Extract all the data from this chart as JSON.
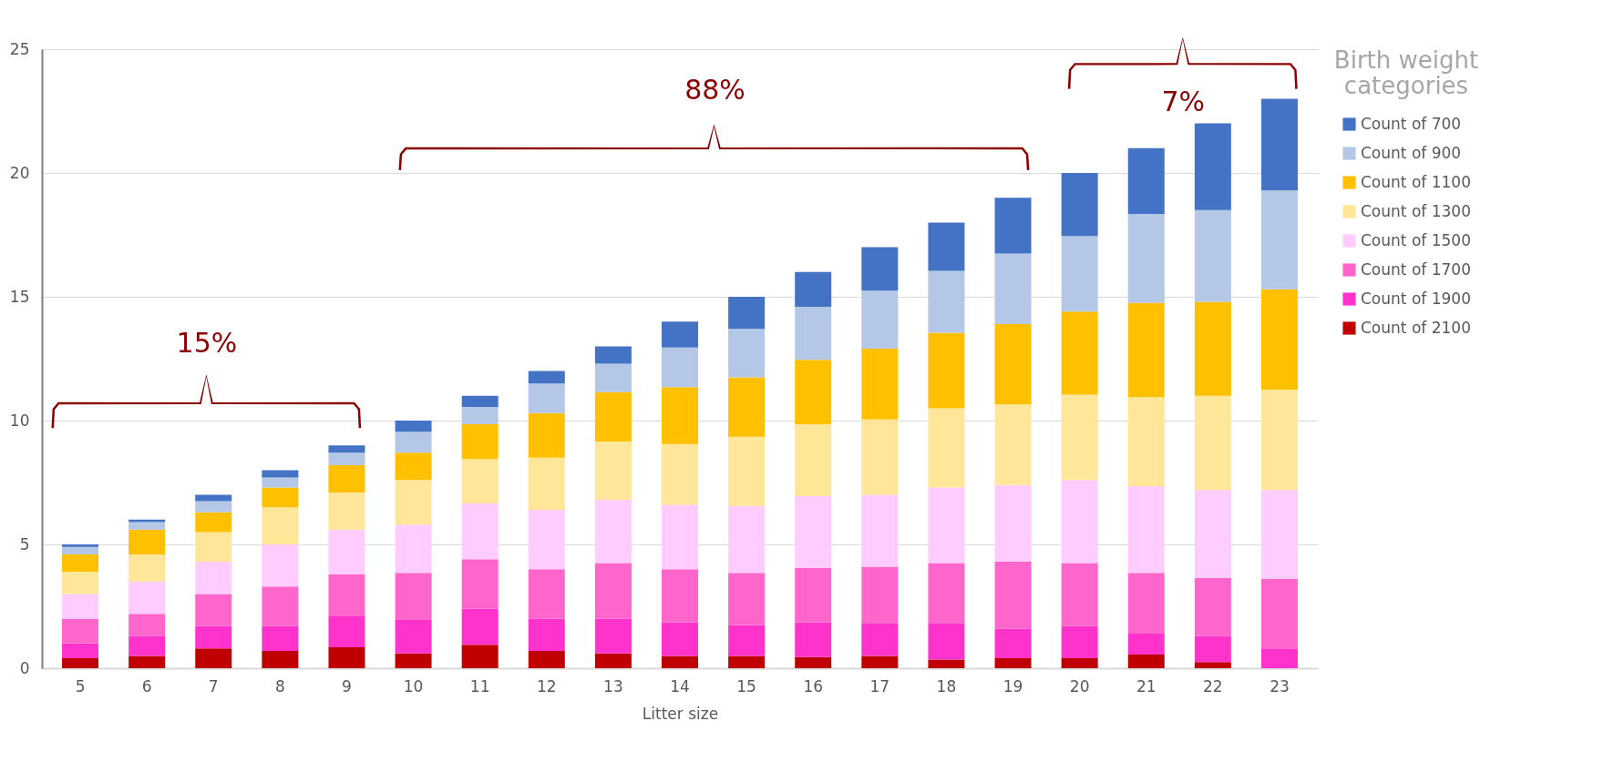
{
  "chart_data": {
    "type": "bar",
    "stacked": true,
    "xlabel": "Litter size",
    "legend_title": "Birth weight categories",
    "legend": "right",
    "grid": "y",
    "categories": [
      "5",
      "6",
      "7",
      "8",
      "9",
      "10",
      "11",
      "12",
      "13",
      "14",
      "15",
      "16",
      "17",
      "18",
      "19",
      "20",
      "21",
      "22",
      "23"
    ],
    "ylim": [
      0,
      25
    ],
    "yticks": [
      0,
      5,
      10,
      15,
      20,
      25
    ],
    "series": [
      {
        "name": "Count of 2100",
        "color": "#c00000",
        "values": [
          0.4,
          0.5,
          0.8,
          0.7,
          0.85,
          0.6,
          0.95,
          0.7,
          0.6,
          0.5,
          0.5,
          0.45,
          0.5,
          0.35,
          0.4,
          0.4,
          0.55,
          0.25,
          0
        ]
      },
      {
        "name": "Count of 1900",
        "color": "#ff33cc",
        "values": [
          0.6,
          0.8,
          0.9,
          1.0,
          1.25,
          1.35,
          1.45,
          1.3,
          1.4,
          1.35,
          1.25,
          1.4,
          1.3,
          1.45,
          1.2,
          1.3,
          0.85,
          1.05,
          0.8
        ]
      },
      {
        "name": "Count of 1700",
        "color": "#ff66cc",
        "values": [
          1.0,
          0.9,
          1.3,
          1.6,
          1.7,
          1.9,
          2.0,
          2.0,
          2.25,
          2.15,
          2.1,
          2.2,
          2.3,
          2.45,
          2.7,
          2.55,
          2.45,
          2.35,
          2.8
        ]
      },
      {
        "name": "Count of 1500",
        "color": "#ffccff",
        "values": [
          1.0,
          1.3,
          1.3,
          1.7,
          1.8,
          1.95,
          2.25,
          2.4,
          2.55,
          2.6,
          2.7,
          2.9,
          2.9,
          3.05,
          3.1,
          3.35,
          3.5,
          3.55,
          3.6
        ]
      },
      {
        "name": "Count of 1300",
        "color": "#ffe699",
        "values": [
          0.9,
          1.1,
          1.2,
          1.5,
          1.5,
          1.8,
          1.8,
          2.1,
          2.35,
          2.45,
          2.8,
          2.9,
          3.05,
          3.2,
          3.25,
          3.45,
          3.6,
          3.8,
          4.05
        ]
      },
      {
        "name": "Count of 1100",
        "color": "#ffc000",
        "values": [
          0.7,
          1.0,
          0.8,
          0.8,
          1.1,
          1.1,
          1.4,
          1.8,
          2.0,
          2.3,
          2.4,
          2.6,
          2.85,
          3.05,
          3.25,
          3.35,
          3.8,
          3.8,
          4.05
        ]
      },
      {
        "name": "Count of 900",
        "color": "#b4c7e7",
        "values": [
          0.3,
          0.3,
          0.45,
          0.4,
          0.5,
          0.85,
          0.7,
          1.2,
          1.15,
          1.6,
          1.95,
          2.15,
          2.35,
          2.5,
          2.85,
          3.05,
          3.6,
          3.7,
          4.0
        ]
      },
      {
        "name": "Count of 700",
        "color": "#4472c4",
        "values": [
          0.1,
          0.1,
          0.25,
          0.3,
          0.3,
          0.45,
          0.45,
          0.5,
          0.7,
          1.05,
          1.3,
          1.4,
          1.75,
          1.95,
          2.25,
          2.55,
          2.65,
          3.5,
          3.7
        ]
      }
    ],
    "annotations": [
      "15%",
      "88%",
      "7%"
    ]
  }
}
